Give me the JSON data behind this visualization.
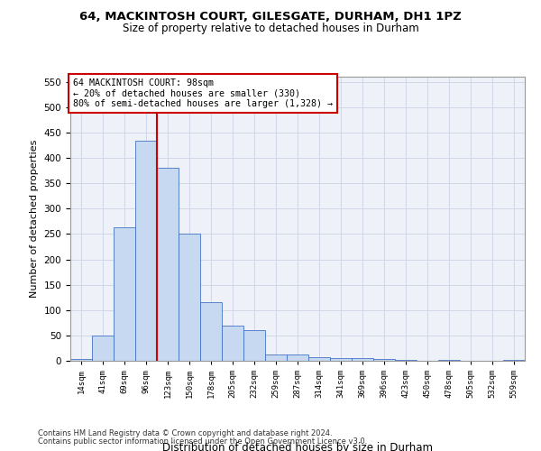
{
  "title_line1": "64, MACKINTOSH COURT, GILESGATE, DURHAM, DH1 1PZ",
  "title_line2": "Size of property relative to detached houses in Durham",
  "xlabel": "Distribution of detached houses by size in Durham",
  "ylabel": "Number of detached properties",
  "categories": [
    "14sqm",
    "41sqm",
    "69sqm",
    "96sqm",
    "123sqm",
    "150sqm",
    "178sqm",
    "205sqm",
    "232sqm",
    "259sqm",
    "287sqm",
    "314sqm",
    "341sqm",
    "369sqm",
    "396sqm",
    "423sqm",
    "450sqm",
    "478sqm",
    "505sqm",
    "532sqm",
    "559sqm"
  ],
  "bar_heights": [
    3,
    50,
    263,
    433,
    380,
    250,
    115,
    70,
    60,
    13,
    13,
    8,
    6,
    6,
    4,
    2,
    0,
    2,
    0,
    0,
    2
  ],
  "bar_color": "#c6d9f0",
  "bar_edge_color": "#4472c4",
  "grid_color": "#d0d8e8",
  "background_color": "#eef2f8",
  "annotation_line1": "64 MACKINTOSH COURT: 98sqm",
  "annotation_line2": "← 20% of detached houses are smaller (330)",
  "annotation_line3": "80% of semi-detached houses are larger (1,328) →",
  "vline_x": 3.5,
  "vline_color": "#cc0000",
  "annotation_box_color": "#ffffff",
  "annotation_box_edge_color": "#cc0000",
  "ylim": [
    0,
    560
  ],
  "yticks": [
    0,
    50,
    100,
    150,
    200,
    250,
    300,
    350,
    400,
    450,
    500,
    550
  ],
  "footer_line1": "Contains HM Land Registry data © Crown copyright and database right 2024.",
  "footer_line2": "Contains public sector information licensed under the Open Government Licence v3.0."
}
